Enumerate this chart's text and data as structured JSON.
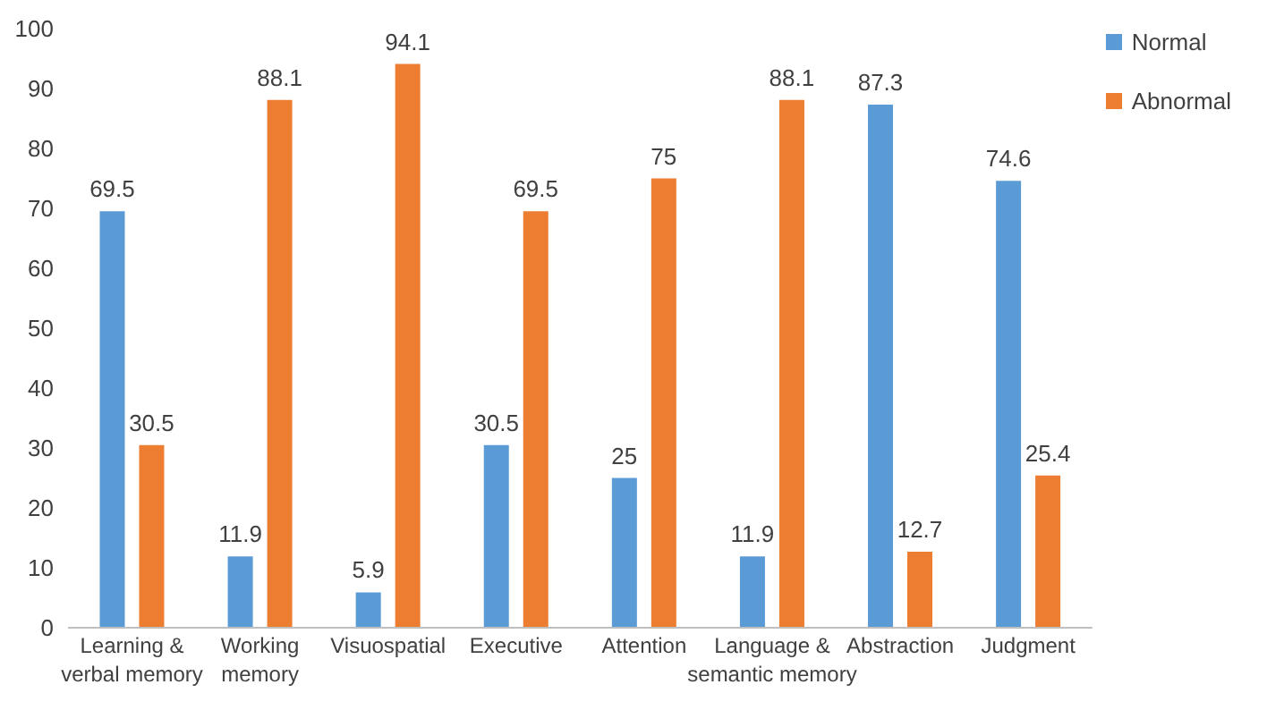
{
  "chart_data": {
    "type": "bar",
    "categories": [
      "Learning & verbal memory",
      "Working memory",
      "Visuospatial",
      "Executive",
      "Attention",
      "Language & semantic memory",
      "Abstraction",
      "Judgment"
    ],
    "series": [
      {
        "name": "Normal",
        "color": "#5b9bd5",
        "values": [
          69.5,
          11.9,
          5.9,
          30.5,
          25,
          11.9,
          87.3,
          74.6
        ]
      },
      {
        "name": "Abnormal",
        "color": "#ed7d31",
        "values": [
          30.5,
          88.1,
          94.1,
          69.5,
          75,
          88.1,
          12.7,
          25.4
        ]
      }
    ],
    "ylim": [
      0,
      100
    ],
    "yticks": [
      0,
      10,
      20,
      30,
      40,
      50,
      60,
      70,
      80,
      90,
      100
    ],
    "grid": false,
    "legend": "top right",
    "data_labels": true
  }
}
